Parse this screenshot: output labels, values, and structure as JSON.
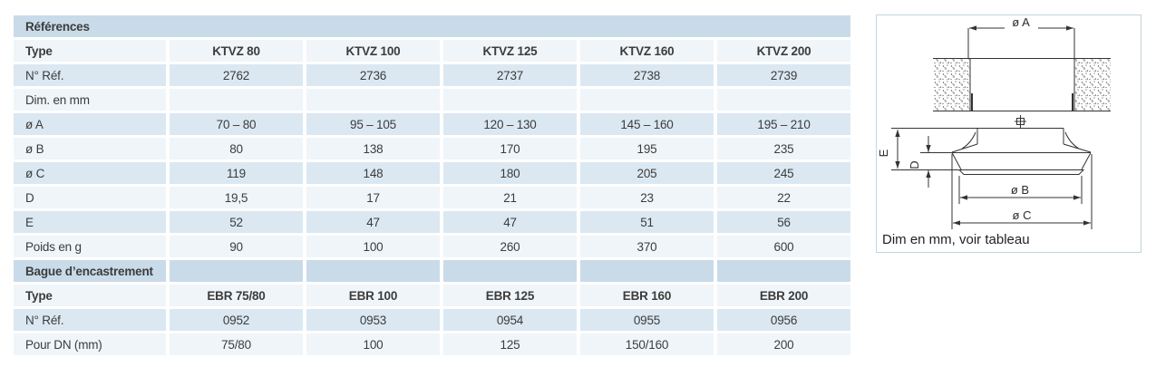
{
  "colors": {
    "section_band": "#c9dbe9",
    "row_blue": "#dbe8f2",
    "row_light": "#f0f5f9",
    "panel_border": "#c5d4dd",
    "drawing_line": "#333333"
  },
  "table": {
    "columns_count": 6,
    "rows": [
      {
        "kind": "section",
        "label": "Références"
      },
      {
        "kind": "header",
        "label": "Type",
        "values": [
          "KTVZ 80",
          "KTVZ 100",
          "KTVZ 125",
          "KTVZ 160",
          "KTVZ 200"
        ]
      },
      {
        "kind": "blue",
        "label": "N° Réf.",
        "values": [
          "2762",
          "2736",
          "2737",
          "2738",
          "2739"
        ]
      },
      {
        "kind": "light",
        "label": "Dim. en mm",
        "values": [
          "",
          "",
          "",
          "",
          ""
        ]
      },
      {
        "kind": "blue",
        "label": "ø A",
        "values": [
          "70 – 80",
          "95 – 105",
          "120 – 130",
          "145 – 160",
          "195 – 210"
        ]
      },
      {
        "kind": "light",
        "label": "ø B",
        "values": [
          "80",
          "138",
          "170",
          "195",
          "235"
        ]
      },
      {
        "kind": "blue",
        "label": "ø C",
        "values": [
          "119",
          "148",
          "180",
          "205",
          "245"
        ]
      },
      {
        "kind": "light",
        "label": "D",
        "values": [
          "19,5",
          "17",
          "21",
          "23",
          "22"
        ]
      },
      {
        "kind": "blue",
        "label": "E",
        "values": [
          "52",
          "47",
          "47",
          "51",
          "56"
        ]
      },
      {
        "kind": "light",
        "label": "Poids en g",
        "values": [
          "90",
          "100",
          "260",
          "370",
          "600"
        ]
      },
      {
        "kind": "section-cells",
        "label": "Bague d’encastrement",
        "values": [
          "",
          "",
          "",
          "",
          ""
        ]
      },
      {
        "kind": "header",
        "label": "Type",
        "values": [
          "EBR 75/80",
          "EBR 100",
          "EBR 125",
          "EBR 160",
          "EBR 200"
        ]
      },
      {
        "kind": "blue",
        "label": "N° Réf.",
        "values": [
          "0952",
          "0953",
          "0954",
          "0955",
          "0956"
        ]
      },
      {
        "kind": "light",
        "label": "Pour DN (mm)",
        "values": [
          "75/80",
          "100",
          "125",
          "150/160",
          "200"
        ]
      }
    ]
  },
  "diagram": {
    "caption": "Dim en mm, voir tableau",
    "dims": {
      "a": "ø A",
      "b": "ø B",
      "c": "ø C",
      "d": "D",
      "e": "E"
    }
  }
}
